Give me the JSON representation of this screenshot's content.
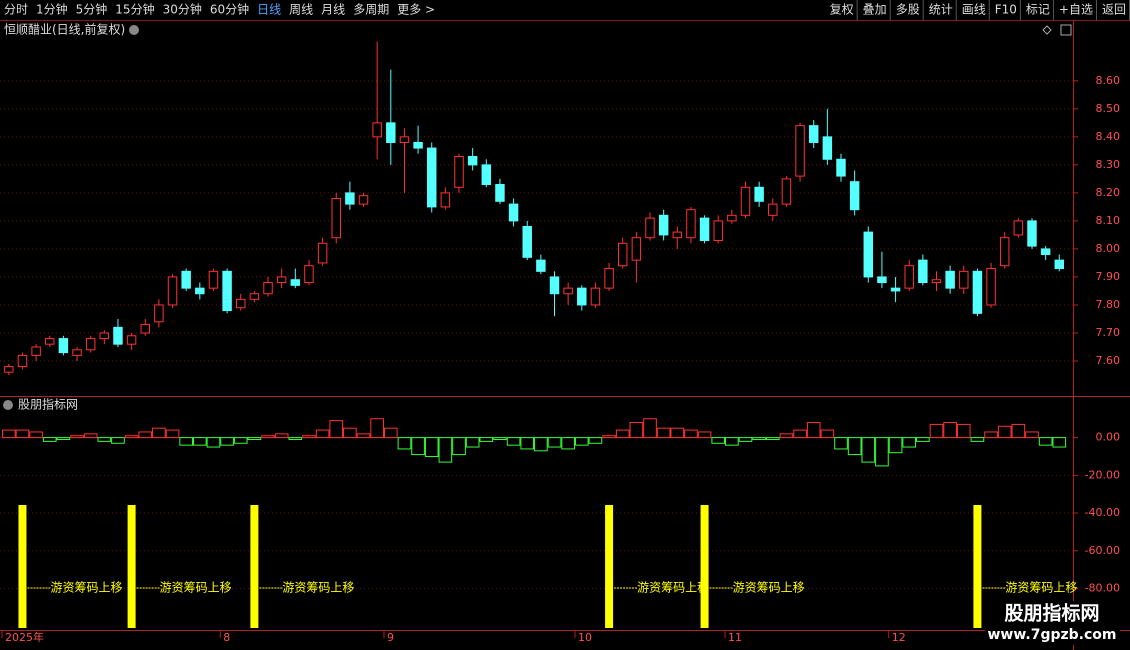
{
  "toolbar": {
    "left": [
      "分时",
      "1分钟",
      "5分钟",
      "15分钟",
      "30分钟",
      "60分钟",
      "日线",
      "周线",
      "月线",
      "多周期",
      "更多 >"
    ],
    "right": [
      "复权",
      "叠加",
      "多股",
      "统计",
      "画线",
      "F10",
      "标记",
      "+自选",
      "返回"
    ]
  },
  "chart_data": [
    {
      "type": "candlestick",
      "title": "恒顺醋业(日线,前复权)",
      "up_color": "#ff3232",
      "down_color": "#54ffff",
      "grid": true,
      "ylim": [
        7.475,
        8.81
      ],
      "yticks": [
        {
          "value": 7.6,
          "label": "7.60"
        },
        {
          "value": 7.7,
          "label": "7.70"
        },
        {
          "value": 7.8,
          "label": "7.80"
        },
        {
          "value": 7.9,
          "label": "7.90"
        },
        {
          "value": 8.0,
          "label": "8.00"
        },
        {
          "value": 8.1,
          "label": "8.10"
        },
        {
          "value": 8.2,
          "label": "8.20"
        },
        {
          "value": 8.3,
          "label": "8.30"
        },
        {
          "value": 8.4,
          "label": "8.40"
        },
        {
          "value": 8.5,
          "label": "8.50"
        },
        {
          "value": 8.6,
          "label": "8.60"
        }
      ],
      "categories": [
        "2025年",
        null,
        null,
        null,
        null,
        null,
        null,
        null,
        null,
        null,
        null,
        null,
        null,
        null,
        null,
        null,
        "8",
        null,
        null,
        null,
        null,
        null,
        null,
        null,
        null,
        null,
        null,
        null,
        "9",
        null,
        null,
        null,
        null,
        null,
        null,
        null,
        null,
        null,
        null,
        null,
        null,
        null,
        "10",
        null,
        null,
        null,
        null,
        null,
        null,
        null,
        null,
        null,
        null,
        "11",
        null,
        null,
        null,
        null,
        null,
        null,
        null,
        null,
        null,
        null,
        null,
        "12",
        null,
        null,
        null,
        null,
        null,
        null,
        null,
        null,
        null,
        null,
        null,
        null
      ],
      "candles": [
        [
          7.56,
          7.59,
          7.55,
          7.58
        ],
        [
          7.58,
          7.63,
          7.57,
          7.62
        ],
        [
          7.62,
          7.66,
          7.6,
          7.65
        ],
        [
          7.66,
          7.69,
          7.65,
          7.68
        ],
        [
          7.68,
          7.69,
          7.62,
          7.63
        ],
        [
          7.62,
          7.65,
          7.6,
          7.64
        ],
        [
          7.64,
          7.69,
          7.63,
          7.68
        ],
        [
          7.68,
          7.71,
          7.66,
          7.7
        ],
        [
          7.72,
          7.75,
          7.65,
          7.66
        ],
        [
          7.66,
          7.7,
          7.64,
          7.69
        ],
        [
          7.7,
          7.75,
          7.69,
          7.73
        ],
        [
          7.74,
          7.82,
          7.72,
          7.8
        ],
        [
          7.8,
          7.91,
          7.79,
          7.9
        ],
        [
          7.92,
          7.93,
          7.85,
          7.86
        ],
        [
          7.86,
          7.88,
          7.82,
          7.84
        ],
        [
          7.86,
          7.93,
          7.85,
          7.92
        ],
        [
          7.92,
          7.93,
          7.77,
          7.78
        ],
        [
          7.79,
          7.84,
          7.78,
          7.82
        ],
        [
          7.82,
          7.85,
          7.81,
          7.84
        ],
        [
          7.84,
          7.9,
          7.83,
          7.88
        ],
        [
          7.88,
          7.93,
          7.86,
          7.9
        ],
        [
          7.89,
          7.93,
          7.86,
          7.87
        ],
        [
          7.88,
          7.96,
          7.87,
          7.94
        ],
        [
          7.95,
          8.04,
          7.94,
          8.02
        ],
        [
          8.04,
          8.2,
          8.02,
          8.18
        ],
        [
          8.2,
          8.24,
          8.14,
          8.16
        ],
        [
          8.16,
          8.2,
          8.15,
          8.19
        ],
        [
          8.4,
          8.74,
          8.32,
          8.45
        ],
        [
          8.45,
          8.64,
          8.3,
          8.38
        ],
        [
          8.38,
          8.43,
          8.2,
          8.4
        ],
        [
          8.38,
          8.44,
          8.34,
          8.36
        ],
        [
          8.36,
          8.38,
          8.13,
          8.15
        ],
        [
          8.15,
          8.22,
          8.14,
          8.2
        ],
        [
          8.22,
          8.34,
          8.2,
          8.33
        ],
        [
          8.33,
          8.36,
          8.28,
          8.3
        ],
        [
          8.3,
          8.32,
          8.22,
          8.23
        ],
        [
          8.23,
          8.25,
          8.16,
          8.17
        ],
        [
          8.16,
          8.18,
          8.08,
          8.1
        ],
        [
          8.08,
          8.1,
          7.96,
          7.97
        ],
        [
          7.96,
          7.98,
          7.91,
          7.92
        ],
        [
          7.9,
          7.92,
          7.76,
          7.84
        ],
        [
          7.84,
          7.88,
          7.8,
          7.86
        ],
        [
          7.86,
          7.87,
          7.78,
          7.8
        ],
        [
          7.8,
          7.88,
          7.79,
          7.86
        ],
        [
          7.86,
          7.95,
          7.85,
          7.93
        ],
        [
          7.94,
          8.04,
          7.93,
          8.02
        ],
        [
          7.96,
          8.06,
          7.88,
          8.04
        ],
        [
          8.04,
          8.13,
          8.03,
          8.11
        ],
        [
          8.12,
          8.14,
          8.03,
          8.05
        ],
        [
          8.04,
          8.08,
          8.0,
          8.06
        ],
        [
          8.04,
          8.15,
          8.02,
          8.14
        ],
        [
          8.11,
          8.12,
          8.02,
          8.03
        ],
        [
          8.03,
          8.12,
          8.02,
          8.1
        ],
        [
          8.1,
          8.14,
          8.09,
          8.12
        ],
        [
          8.12,
          8.24,
          8.11,
          8.22
        ],
        [
          8.22,
          8.24,
          8.15,
          8.17
        ],
        [
          8.12,
          8.18,
          8.1,
          8.16
        ],
        [
          8.16,
          8.26,
          8.15,
          8.25
        ],
        [
          8.26,
          8.45,
          8.24,
          8.44
        ],
        [
          8.44,
          8.46,
          8.36,
          8.38
        ],
        [
          8.4,
          8.5,
          8.3,
          8.32
        ],
        [
          8.32,
          8.34,
          8.24,
          8.26
        ],
        [
          8.24,
          8.28,
          8.12,
          8.14
        ],
        [
          8.06,
          8.08,
          7.88,
          7.9
        ],
        [
          7.9,
          7.99,
          7.86,
          7.88
        ],
        [
          7.86,
          7.9,
          7.81,
          7.85
        ],
        [
          7.86,
          7.96,
          7.85,
          7.94
        ],
        [
          7.96,
          7.98,
          7.87,
          7.88
        ],
        [
          7.88,
          7.92,
          7.85,
          7.89
        ],
        [
          7.92,
          7.94,
          7.84,
          7.86
        ],
        [
          7.86,
          7.94,
          7.84,
          7.92
        ],
        [
          7.92,
          7.93,
          7.76,
          7.77
        ],
        [
          7.8,
          7.95,
          7.79,
          7.93
        ],
        [
          7.94,
          8.06,
          7.93,
          8.04
        ],
        [
          8.05,
          8.11,
          8.04,
          8.1
        ],
        [
          8.1,
          8.11,
          8.0,
          8.01
        ],
        [
          8.0,
          8.01,
          7.96,
          7.98
        ],
        [
          7.96,
          7.98,
          7.92,
          7.93
        ]
      ]
    },
    {
      "type": "bar",
      "title": "股朋指标网",
      "pos_color": "#ff3232",
      "neg_color": "#33ff33",
      "signal_color": "#ffff00",
      "grid": true,
      "ylim": [
        -102,
        21
      ],
      "yticks": [
        {
          "value": 0,
          "label": "0.00"
        },
        {
          "value": -20,
          "label": "-20.00"
        },
        {
          "value": -40,
          "label": "-40.00"
        },
        {
          "value": -60,
          "label": "-60.00"
        },
        {
          "value": -80,
          "label": "-80.00"
        }
      ],
      "values": [
        4,
        4,
        3,
        -2,
        -1,
        1,
        2,
        -2,
        -3,
        1,
        3,
        5,
        4,
        -4,
        -4,
        -5,
        -4,
        -3,
        -1,
        1,
        2,
        -1,
        1,
        4,
        9,
        5,
        2,
        10,
        5,
        -6,
        -9,
        -10,
        -13,
        -9,
        -5,
        -2,
        -1,
        -4,
        -6,
        -7,
        -5,
        -6,
        -4,
        -3,
        1,
        4,
        8,
        10,
        5,
        5,
        4,
        3,
        -3,
        -4,
        -2,
        -1,
        -1,
        2,
        4,
        8,
        4,
        -6,
        -9,
        -13,
        -15,
        -8,
        -5,
        -2,
        7,
        8,
        7,
        -2,
        3,
        6,
        7,
        3,
        -4,
        -5
      ],
      "signals": [
        null,
        "游资筹码上移",
        null,
        null,
        null,
        null,
        null,
        null,
        null,
        "游资筹码上移",
        null,
        null,
        null,
        null,
        null,
        null,
        null,
        null,
        "游资筹码上移",
        null,
        null,
        null,
        null,
        null,
        null,
        null,
        null,
        null,
        null,
        null,
        null,
        null,
        null,
        null,
        null,
        null,
        null,
        null,
        null,
        null,
        null,
        null,
        null,
        null,
        "游资筹码上移",
        null,
        null,
        null,
        null,
        null,
        null,
        "游资筹码上移",
        null,
        null,
        null,
        null,
        null,
        null,
        null,
        null,
        null,
        null,
        null,
        null,
        null,
        null,
        null,
        null,
        null,
        null,
        null,
        "游资筹码上移",
        null,
        null,
        null,
        null
      ]
    }
  ],
  "watermark": {
    "title": "股朋指标网",
    "url": "www.7gpzb.com"
  }
}
